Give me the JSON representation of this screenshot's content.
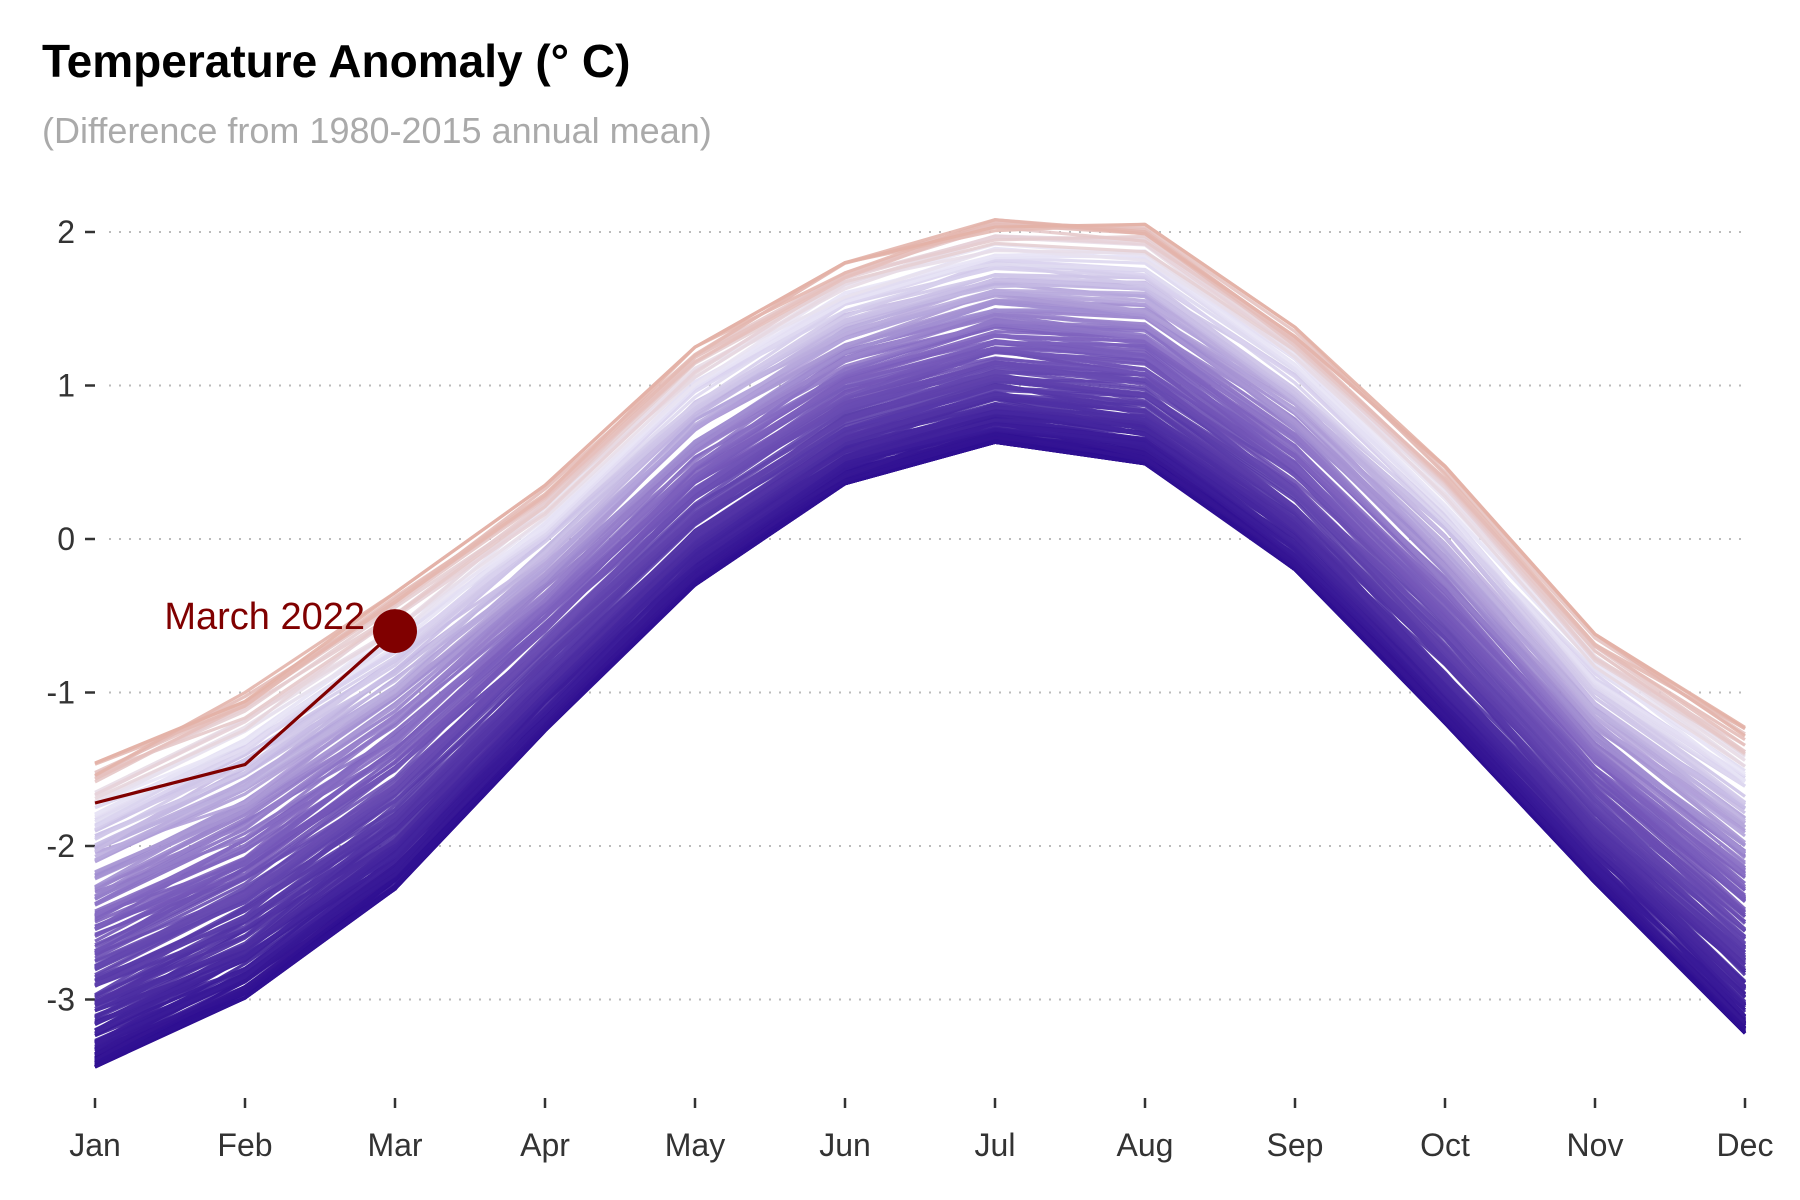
{
  "title": "Temperature Anomaly (° C)",
  "subtitle": "(Difference from 1980-2015 annual mean)",
  "chart_data": {
    "type": "line",
    "categories": [
      "Jan",
      "Feb",
      "Mar",
      "Apr",
      "May",
      "Jun",
      "Jul",
      "Aug",
      "Sep",
      "Oct",
      "Nov",
      "Dec"
    ],
    "ylim": [
      -3.5,
      2.2
    ],
    "yticks": [
      2,
      1,
      0,
      -1,
      -2,
      -3
    ],
    "grid": {
      "horizontal": true,
      "vertical": false,
      "style": "dotted"
    },
    "legend": "none",
    "colors": {
      "cold": "#2b0b8f",
      "mid": "#7e62be",
      "light": "#e9e6f6",
      "warm": "#e3b1a6",
      "highlight": "#800000",
      "grid": "#bbbbbb"
    },
    "series_envelope": {
      "min": [
        -3.44,
        -2.99,
        -2.28,
        -1.25,
        -0.3,
        0.36,
        0.63,
        0.49,
        -0.2,
        -1.2,
        -2.24,
        -3.22
      ],
      "max": [
        -1.46,
        -1.0,
        -0.35,
        0.35,
        1.25,
        1.8,
        2.08,
        2.05,
        1.38,
        0.48,
        -0.62,
        -1.22
      ]
    },
    "series_count": 200,
    "highlight_series": {
      "values": [
        -1.72,
        -1.47,
        -0.6
      ],
      "last_category": "Mar"
    },
    "annotation": {
      "text": "March 2022",
      "category": "Mar",
      "value": -0.6
    }
  }
}
